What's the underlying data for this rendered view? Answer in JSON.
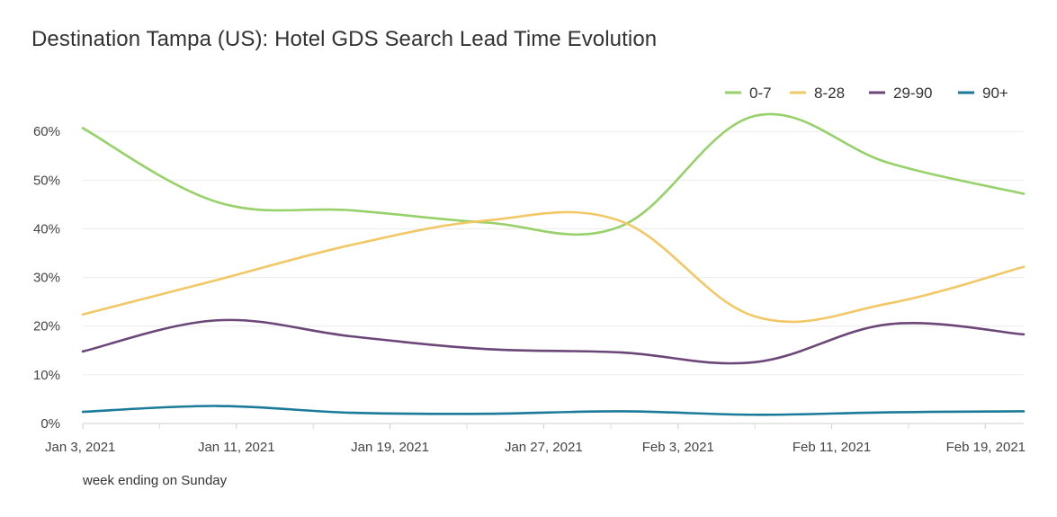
{
  "chart_data": {
    "type": "line",
    "title": "Destination Tampa (US): Hotel GDS Search Lead Time Evolution",
    "xlabel": "week ending on Sunday",
    "ylabel": "",
    "x": [
      "2021-01-03",
      "2021-01-10",
      "2021-01-17",
      "2021-01-24",
      "2021-01-31",
      "2021-02-07",
      "2021-02-14",
      "2021-02-21"
    ],
    "x_tick_labels": [
      {
        "date": "2021-01-03",
        "label": "Jan 3, 2021"
      },
      {
        "date": "2021-01-11",
        "label": "Jan 11, 2021"
      },
      {
        "date": "2021-01-19",
        "label": "Jan 19, 2021"
      },
      {
        "date": "2021-01-27",
        "label": "Jan 27, 2021"
      },
      {
        "date": "2021-02-03",
        "label": "Feb 3, 2021"
      },
      {
        "date": "2021-02-11",
        "label": "Feb 11, 2021"
      },
      {
        "date": "2021-02-19",
        "label": "Feb 19, 2021"
      }
    ],
    "y_ticks": [
      0,
      10,
      20,
      30,
      40,
      50,
      60
    ],
    "y_tick_labels": [
      "0%",
      "10%",
      "20%",
      "30%",
      "40%",
      "50%",
      "60%"
    ],
    "ylim": [
      0,
      63
    ],
    "grid": true,
    "legend_position": "top-right",
    "series": [
      {
        "name": "0-7",
        "color": "#96d16a",
        "values": [
          60.7,
          45.5,
          43.8,
          41.3,
          40.5,
          63.2,
          53.5,
          47.2
        ]
      },
      {
        "name": "8-28",
        "color": "#f2c867",
        "values": [
          22.4,
          29.5,
          36.7,
          41.7,
          41.6,
          22.0,
          24.7,
          32.2
        ]
      },
      {
        "name": "29-90",
        "color": "#6b4678",
        "values": [
          14.8,
          21.2,
          17.9,
          15.3,
          14.6,
          12.6,
          20.4,
          18.3
        ]
      },
      {
        "name": "90+",
        "color": "#1a7a9a",
        "values": [
          2.4,
          3.6,
          2.2,
          2.0,
          2.5,
          1.8,
          2.3,
          2.5
        ]
      }
    ]
  }
}
